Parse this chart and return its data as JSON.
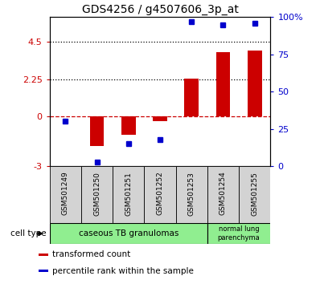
{
  "title": "GDS4256 / g4507606_3p_at",
  "samples": [
    "GSM501249",
    "GSM501250",
    "GSM501251",
    "GSM501252",
    "GSM501253",
    "GSM501254",
    "GSM501255"
  ],
  "transformed_count": [
    0.0,
    -1.8,
    -1.1,
    -0.3,
    2.3,
    3.9,
    4.0
  ],
  "percentile_rank": [
    30,
    3,
    15,
    18,
    97,
    95,
    96
  ],
  "ylim_left": [
    -3,
    6
  ],
  "ylim_right": [
    0,
    100
  ],
  "yticks_left": [
    -3,
    0,
    2.25,
    4.5
  ],
  "ytick_labels_left": [
    "-3",
    "0",
    "2.25",
    "4.5"
  ],
  "yticks_right": [
    0,
    25,
    50,
    75,
    100
  ],
  "ytick_labels_right": [
    "0",
    "25",
    "50",
    "75",
    "100%"
  ],
  "bar_color": "#CC0000",
  "dot_color": "#0000CC",
  "cell_type_group1_label": "caseous TB granulomas",
  "cell_type_group1_samples": 5,
  "cell_type_group2_label": "normal lung\nparenchyma",
  "cell_type_group2_samples": 2,
  "cell_type_label": "cell type",
  "cell_type_bg": "#90EE90",
  "sample_box_bg": "#d3d3d3",
  "legend_items": [
    {
      "color": "#CC0000",
      "label": "transformed count"
    },
    {
      "color": "#0000CC",
      "label": "percentile rank within the sample"
    }
  ],
  "background_color": "#ffffff",
  "bar_width": 0.45
}
